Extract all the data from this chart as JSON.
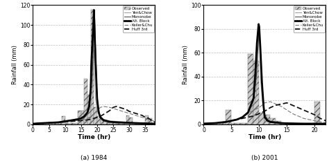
{
  "plot_a": {
    "title": "(a) 1984",
    "xlim": [
      0,
      38
    ],
    "ylim": [
      0,
      120
    ],
    "xticks": [
      0,
      5,
      10,
      15,
      20,
      25,
      30,
      35
    ],
    "yticks": [
      0,
      20,
      40,
      60,
      80,
      100,
      120
    ],
    "bar_centers": [
      0.5,
      1.5,
      2.5,
      3.5,
      4.5,
      5.5,
      6.5,
      7.5,
      8.5,
      9.5,
      10.5,
      11.5,
      12.5,
      13.5,
      14.5,
      15.5,
      16.5,
      17.5,
      18.5,
      19.5,
      20.5,
      21.5,
      22.5,
      23.5,
      24.5,
      25.5,
      26.5,
      27.5,
      28.5,
      29.5,
      30.5,
      31.5,
      32.5,
      33.5,
      34.5,
      35.5,
      36.5
    ],
    "bar_h": [
      1,
      1,
      1,
      1,
      1,
      1,
      1,
      1,
      1,
      8,
      1,
      1,
      1,
      1,
      14,
      14,
      46,
      30,
      115,
      17,
      8,
      5,
      4,
      2,
      1,
      1,
      1,
      1,
      1,
      9,
      7,
      1,
      1,
      1,
      1,
      9,
      6
    ],
    "yen_chow_x": [
      0,
      2,
      5,
      8,
      10,
      12,
      14,
      16,
      17,
      18,
      18.5,
      19,
      19.5,
      20,
      21,
      22,
      24,
      26,
      28,
      30,
      32,
      34,
      36,
      38
    ],
    "yen_chow_y": [
      0.5,
      1,
      1.5,
      2.5,
      3.5,
      4.5,
      6,
      8,
      11,
      18,
      28,
      75,
      25,
      14,
      8,
      5,
      3.5,
      3,
      2.5,
      2,
      1.8,
      1.5,
      1.2,
      1
    ],
    "mononobe_x": [
      0,
      2,
      5,
      8,
      10,
      12,
      14,
      16,
      17,
      17.5,
      18,
      18.5,
      19,
      19.2,
      19.5,
      20,
      20.5,
      21,
      22,
      24,
      26,
      28,
      30,
      32,
      34,
      36,
      38
    ],
    "mononobe_y": [
      0.5,
      1,
      1.5,
      2,
      3,
      4,
      5,
      8,
      12,
      18,
      28,
      50,
      90,
      115,
      80,
      30,
      15,
      8,
      5,
      3,
      2.5,
      2,
      1.8,
      1.5,
      1.2,
      1,
      0.8
    ],
    "alt_block_x": [
      0,
      2,
      5,
      8,
      10,
      12,
      14,
      15,
      16,
      17,
      17.5,
      18,
      18.2,
      18.5,
      18.8,
      19,
      19.2,
      19.5,
      20,
      20.5,
      21,
      22,
      24,
      26,
      28,
      30,
      32,
      34,
      36,
      38
    ],
    "alt_block_y": [
      0.5,
      1,
      1.5,
      2,
      3,
      4,
      5,
      6,
      8,
      12,
      18,
      35,
      60,
      80,
      100,
      115,
      95,
      65,
      25,
      12,
      7,
      4,
      2.5,
      2,
      1.8,
      1.5,
      1.2,
      1,
      0.8,
      0.5
    ],
    "keiler_x": [
      0,
      2,
      5,
      8,
      10,
      12,
      14,
      16,
      17,
      18,
      19,
      20,
      21,
      22,
      24,
      26,
      28,
      30,
      32,
      34,
      36,
      38
    ],
    "keiler_y": [
      0.5,
      1,
      1.5,
      2,
      2.5,
      3,
      4,
      5,
      6,
      8,
      10,
      13,
      17,
      18,
      17,
      15,
      13,
      11,
      9,
      7,
      5,
      3
    ],
    "huff_x": [
      0,
      2,
      5,
      8,
      10,
      12,
      14,
      16,
      17,
      18,
      19,
      20,
      21,
      22,
      23,
      24,
      25,
      26,
      27,
      28,
      29,
      30,
      31,
      32,
      33,
      34,
      35,
      36,
      37,
      38
    ],
    "huff_y": [
      0.5,
      1,
      1.5,
      2,
      2.5,
      3,
      3.5,
      4,
      4.5,
      5,
      6,
      7,
      8,
      10,
      12,
      14,
      17,
      18,
      17,
      16,
      15,
      13,
      12,
      11,
      10,
      9,
      7,
      6,
      4,
      2
    ]
  },
  "plot_b": {
    "title": "(b) 2001",
    "xlim": [
      0,
      22
    ],
    "ylim": [
      0,
      100
    ],
    "xticks": [
      0,
      5,
      10,
      15,
      20
    ],
    "yticks": [
      0,
      20,
      40,
      60,
      80,
      100
    ],
    "bar_centers": [
      0.5,
      1.5,
      2.5,
      3.5,
      4.5,
      5.5,
      6.5,
      7.5,
      8.5,
      9.5,
      10.5,
      11.5,
      12.5,
      13.5,
      14.5,
      15.5,
      16.5,
      17.5,
      18.5,
      19.5,
      20.5
    ],
    "bar_h": [
      1,
      1,
      1,
      1,
      12,
      1,
      1,
      1,
      59,
      53,
      10,
      8,
      5,
      3,
      1,
      1,
      1,
      1,
      1,
      1,
      19
    ],
    "yen_chow_x": [
      0,
      1,
      2,
      3,
      4,
      5,
      6,
      7,
      8,
      9,
      9.5,
      10,
      10.3,
      10.6,
      11,
      11.5,
      12,
      13,
      14,
      15,
      16,
      17,
      18,
      19,
      20,
      21,
      22
    ],
    "yen_chow_y": [
      0.5,
      0.8,
      1,
      1.5,
      2,
      3,
      4,
      6,
      9,
      15,
      25,
      80,
      35,
      18,
      8,
      5,
      3,
      2,
      1.5,
      1.2,
      1,
      0.8,
      0.7,
      0.6,
      0.5,
      0.5,
      0.5
    ],
    "mononobe_x": [
      0,
      1,
      2,
      3,
      4,
      5,
      6,
      7,
      8,
      9,
      9.5,
      10,
      10.3,
      10.5,
      10.8,
      11,
      11.5,
      12,
      13,
      14,
      15,
      16,
      17,
      18,
      19,
      20,
      21,
      22
    ],
    "mononobe_y": [
      0.5,
      0.8,
      1,
      1.5,
      2,
      3,
      4,
      6,
      10,
      20,
      40,
      82,
      55,
      35,
      18,
      8,
      4,
      2.5,
      1.8,
      1.3,
      1,
      0.8,
      0.7,
      0.6,
      0.5,
      0.5,
      0.5,
      0.5
    ],
    "alt_block_x": [
      0,
      1,
      2,
      3,
      4,
      5,
      6,
      7,
      8,
      9,
      9.3,
      9.6,
      9.9,
      10,
      10.2,
      10.5,
      10.8,
      11,
      11.5,
      12,
      13,
      14,
      15,
      16,
      17,
      18,
      19,
      20,
      21,
      22
    ],
    "alt_block_y": [
      0.5,
      0.8,
      1,
      1.5,
      2,
      3,
      4,
      6,
      10,
      22,
      42,
      68,
      84,
      82,
      65,
      35,
      15,
      6,
      3,
      2,
      1.5,
      1,
      0.8,
      0.7,
      0.6,
      0.5,
      0.5,
      0.5,
      0.5,
      0.5
    ],
    "keiler_x": [
      0,
      1,
      2,
      3,
      4,
      5,
      6,
      7,
      8,
      9,
      10,
      11,
      12,
      13,
      14,
      15,
      16,
      17,
      18,
      19,
      20,
      21,
      22
    ],
    "keiler_y": [
      0.5,
      0.8,
      1,
      1.5,
      2,
      3,
      4,
      6,
      9,
      12,
      14,
      18,
      19,
      17,
      15,
      12,
      9,
      7,
      5,
      4,
      3,
      2,
      1.5
    ],
    "huff_x": [
      0,
      1,
      2,
      3,
      4,
      5,
      6,
      7,
      8,
      9,
      10,
      11,
      12,
      13,
      14,
      15,
      16,
      17,
      18,
      19,
      20,
      21,
      22
    ],
    "huff_y": [
      0.5,
      0.8,
      1,
      1.5,
      2,
      3,
      4,
      5,
      6,
      7,
      9,
      11,
      14,
      16,
      17,
      18,
      16,
      14,
      12,
      10,
      8,
      5,
      3
    ]
  },
  "bar_color": "#cccccc",
  "bar_hatch": "////",
  "bar_edgecolor": "#666666",
  "yen_color": "#999999",
  "mono_color": "#444444",
  "alt_color": "#000000",
  "keiler_color": "#777777",
  "huff_color": "#111111",
  "ylabel": "Rainfall (mm)",
  "xlabel": "Time (hr)",
  "grid_color": "#bbbbbb",
  "grid_style": "--"
}
